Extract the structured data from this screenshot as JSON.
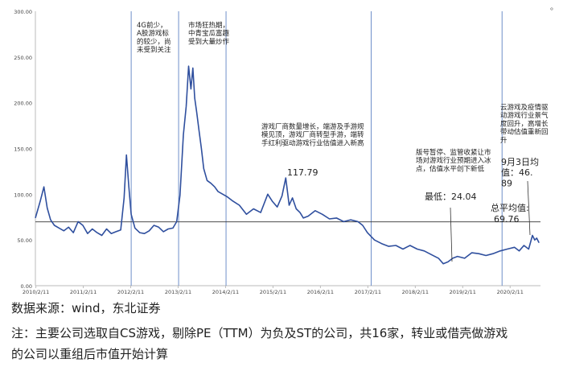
{
  "chart_data": {
    "type": "line",
    "ylim": [
      0,
      300
    ],
    "yticks": [
      "0.00",
      "50.00",
      "100.00",
      "150.00",
      "200.00",
      "250.00",
      "300.00"
    ],
    "xticks": [
      "2010/2/11",
      "2011/2/11",
      "2012/2/11",
      "2013/2/11",
      "2014/2/11",
      "2015/2/11",
      "2016/2/11",
      "2017/2/11",
      "2018/2/11",
      "2019/2/11",
      "2020/2/11"
    ],
    "xlim": [
      2010.1,
      2020.75
    ],
    "grid": false,
    "series_color": "#2f4f9e",
    "series": [
      {
        "x": [
          2010.1,
          2010.2,
          2010.28,
          2010.35,
          2010.42,
          2010.5,
          2010.6,
          2010.7,
          2010.8,
          2010.9,
          2011.0,
          2011.1,
          2011.2,
          2011.3,
          2011.4,
          2011.5,
          2011.6,
          2011.7,
          2011.8,
          2011.9,
          2011.97,
          2012.02,
          2012.07,
          2012.12,
          2012.2,
          2012.3,
          2012.4,
          2012.5,
          2012.6,
          2012.7,
          2012.8,
          2012.9,
          2013.0,
          2013.08,
          2013.15,
          2013.22,
          2013.28,
          2013.33,
          2013.38,
          2013.42,
          2013.46,
          2013.5,
          2013.55,
          2013.6,
          2013.65,
          2013.72,
          2013.8,
          2013.88,
          2013.95,
          2014.05,
          2014.15,
          2014.25,
          2014.4,
          2014.55,
          2014.7,
          2014.85,
          2015.0,
          2015.1,
          2015.2,
          2015.3,
          2015.38,
          2015.45,
          2015.52,
          2015.6,
          2015.68,
          2015.75,
          2015.85,
          2016.0,
          2016.15,
          2016.3,
          2016.45,
          2016.6,
          2016.75,
          2016.9,
          2017.0,
          2017.1,
          2017.25,
          2017.4,
          2017.55,
          2017.7,
          2017.85,
          2018.0,
          2018.15,
          2018.3,
          2018.45,
          2018.6,
          2018.7,
          2018.8,
          2018.9,
          2019.0,
          2019.15,
          2019.3,
          2019.45,
          2019.6,
          2019.75,
          2019.9,
          2020.05,
          2020.2,
          2020.3,
          2020.4,
          2020.5,
          2020.58,
          2020.63,
          2020.67,
          2020.72
        ],
        "y": [
          74,
          92,
          108,
          85,
          72,
          66,
          63,
          60,
          64,
          58,
          70,
          66,
          57,
          62,
          58,
          55,
          62,
          57,
          59,
          61,
          96,
          143,
          108,
          78,
          63,
          58,
          57,
          60,
          66,
          64,
          59,
          62,
          63,
          70,
          99,
          165,
          196,
          240,
          215,
          238,
          205,
          190,
          170,
          150,
          128,
          115,
          112,
          108,
          103,
          100,
          97,
          93,
          88,
          78,
          84,
          80,
          100,
          92,
          86,
          98,
          117.79,
          88,
          96,
          84,
          80,
          74,
          76,
          82,
          78,
          73,
          74,
          70,
          72,
          70,
          66,
          58,
          50,
          46,
          43,
          44,
          40,
          44,
          40,
          38,
          34,
          30,
          24.04,
          26,
          30,
          32,
          30,
          36,
          35,
          33,
          35,
          38,
          40,
          42,
          38,
          44,
          40,
          55,
          50,
          52,
          46.89
        ]
      }
    ],
    "mean": {
      "value": 69.76,
      "label": "总平均值:",
      "value_text": "69.76"
    },
    "event_lines": [
      2012.12,
      2013.12,
      2014.12,
      2017.18,
      2019.94
    ],
    "annotations": [
      {
        "text": "4G前少，A股游戏标的较少，尚未受到关注"
      },
      {
        "text": "市场狂热期，中青宝瓜富趣受到大量炒作"
      },
      {
        "text": "游戏厂商数量增长，端游及手游规模见顶，游戏厂商转型手游，端转手红利驱动游戏行业估值进入新高"
      },
      {
        "text": "117.79"
      },
      {
        "text": "版号暂停、监管收紧让市场对游戏行业预期进入冰点，估值水平创下新低"
      },
      {
        "text": "最低：24.04"
      },
      {
        "text": "云游戏及疫情驱动游戏行业景气度回升，高增长带动估值重新回升"
      },
      {
        "text": "9月3日均值：46.89"
      }
    ]
  },
  "footer": {
    "source": "数据来源：wind，东北证券",
    "note_line1": "注：主要公司选取自CS游戏，剔除PE（TTM）为负及ST的公司，共16家，转业或借壳做游戏",
    "note_line2": "的公司以重组后市值开始计算"
  },
  "top_fragment": "。"
}
